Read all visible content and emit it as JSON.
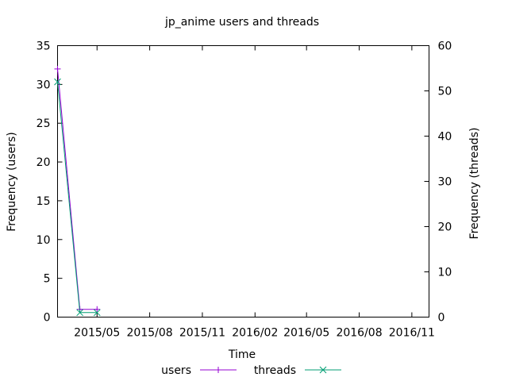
{
  "chart_data": {
    "type": "line",
    "title": "jp_anime users and threads",
    "xlabel": "Time",
    "ylabel": "Frequency (users)",
    "y2label": "Frequency (threads)",
    "x_range": [
      "2015-02-21",
      "2016-12-01"
    ],
    "ylim": [
      0,
      35
    ],
    "y2lim": [
      0,
      60
    ],
    "y_ticks": [
      0,
      5,
      10,
      15,
      20,
      25,
      30,
      35
    ],
    "y2_ticks": [
      0,
      10,
      20,
      30,
      40,
      50,
      60
    ],
    "x_ticks": [
      {
        "date": "2015-05-01",
        "label": "2015/05"
      },
      {
        "date": "2015-08-01",
        "label": "2015/08"
      },
      {
        "date": "2015-11-01",
        "label": "2015/11"
      },
      {
        "date": "2016-02-01",
        "label": "2016/02"
      },
      {
        "date": "2016-05-01",
        "label": "2016/05"
      },
      {
        "date": "2016-08-01",
        "label": "2016/08"
      },
      {
        "date": "2016-11-01",
        "label": "2016/11"
      }
    ],
    "grid": false,
    "legend_position": "bottom-center",
    "series": [
      {
        "name": "users",
        "axis": "y1",
        "color": "#9400d3",
        "marker": "plus",
        "points": [
          {
            "x": "2015-02-21",
            "y": 32
          },
          {
            "x": "2015-04-01",
            "y": 1
          },
          {
            "x": "2015-05-01",
            "y": 1
          }
        ]
      },
      {
        "name": "threads",
        "axis": "y2",
        "color": "#009e73",
        "marker": "cross",
        "points": [
          {
            "x": "2015-02-21",
            "y": 52
          },
          {
            "x": "2015-04-01",
            "y": 1
          },
          {
            "x": "2015-05-01",
            "y": 1
          }
        ]
      }
    ]
  }
}
